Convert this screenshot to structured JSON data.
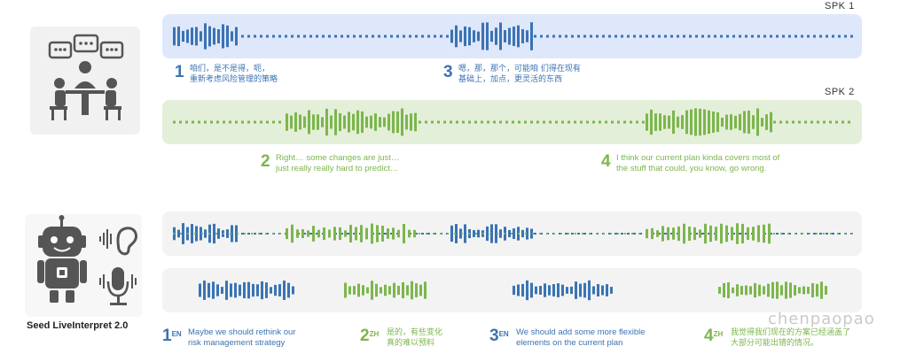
{
  "lanes": {
    "spk1_label": "SPK 1",
    "spk2_label": "SPK 2"
  },
  "utterances": {
    "u1": {
      "num": "1",
      "text_line1": "咱们，是不是得，呃，",
      "text_line2": "重新考虑风险管理的策略"
    },
    "u3": {
      "num": "3",
      "text_line1": "嗯，那，那个，可能咱 们得在现有",
      "text_line2": "基础上，加点，更灵活的东西"
    },
    "u2": {
      "num": "2",
      "text_line1": "Right… some changes are just…",
      "text_line2": "just really really hard to predict…"
    },
    "u4": {
      "num": "4",
      "text_line1": "I think our current plan kinda covers most of",
      "text_line2": "the stuff that could, you know, go wrong."
    }
  },
  "translations": [
    {
      "num": "1",
      "lang": "EN",
      "line1": "Maybe we should rethink our",
      "line2": "risk management strategy"
    },
    {
      "num": "2",
      "lang": "ZH",
      "line1": "是的，有些变化",
      "line2": "真的难以预料"
    },
    {
      "num": "3",
      "lang": "EN",
      "line1": "We should add some more flexible",
      "line2": "elements on the current plan"
    },
    {
      "num": "4",
      "lang": "ZH",
      "line1": "我觉得我们现在的方案已经涵盖了",
      "line2": "大部分可能出错的情况。"
    }
  ],
  "brand": {
    "name": "Seed LiveInterpret 2.0"
  },
  "watermark": "chenpaopao",
  "colors": {
    "blue": "#3a73b3",
    "green": "#7cb64c",
    "blue_lane": "#dfe7fb",
    "green_lane": "#e4efd9",
    "grey_lane": "#f3f3f3"
  },
  "icons": [
    "conversation-icon",
    "robot-icon",
    "ear-icon",
    "microphone-icon"
  ]
}
